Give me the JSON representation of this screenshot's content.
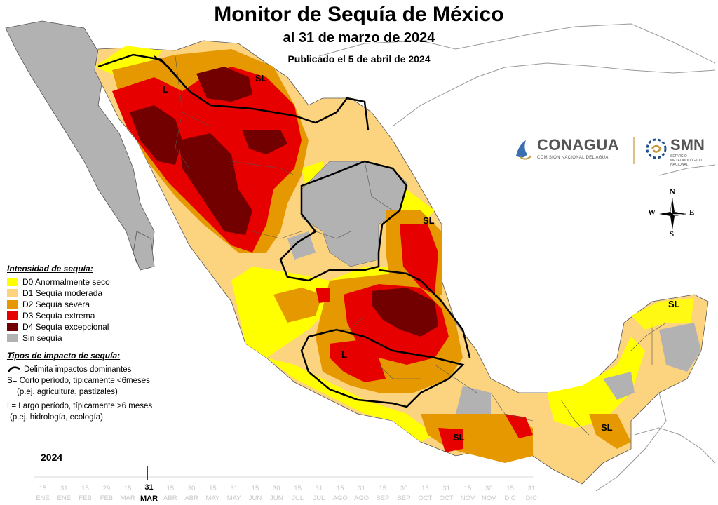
{
  "header": {
    "title": "Monitor de Sequía de México",
    "subtitle": "al 31 de marzo de 2024",
    "published": "Publicado el 5 de abril de 2024"
  },
  "logos": {
    "conagua_name": "CONAGUA",
    "conagua_sub": "COMISIÓN NACIONAL DEL AGUA",
    "smn_name": "SMN",
    "smn_sub1": "SERVICIO",
    "smn_sub2": "METEOROLÓGICO",
    "smn_sub3": "NACIONAL"
  },
  "compass": {
    "n": "N",
    "s": "S",
    "e": "E",
    "w": "W"
  },
  "legend": {
    "intensity_title": "Intensidad de sequía:",
    "categories": [
      {
        "label": "D0 Anormalmente seco",
        "color": "#ffff00"
      },
      {
        "label": "D1 Sequía moderada",
        "color": "#fcd37f"
      },
      {
        "label": "D2 Sequía severa",
        "color": "#e69800"
      },
      {
        "label": "D3 Sequía extrema",
        "color": "#e60000"
      },
      {
        "label": "D4 Sequía excepcional",
        "color": "#730000"
      },
      {
        "label": "Sin sequía",
        "color": "#b2b2b2"
      }
    ],
    "impact_title": "Tipos de impacto de sequía:",
    "impact_line": "Delimita impactos dominantes",
    "short_term": "S= Corto período, típicamente <6meses",
    "short_term_ex": "(p.ej. agricultura, pastizales)",
    "long_term": "L= Largo período, típicamente >6 meses",
    "long_term_ex": "(p.ej. hidrología, ecología)"
  },
  "region_labels": [
    "L",
    "SL",
    "SL",
    "L",
    "SL",
    "SL",
    "SL"
  ],
  "timeline": {
    "year": "2024",
    "day_labels": [
      "15",
      "31",
      "15",
      "29",
      "15",
      "31",
      "15",
      "30",
      "15",
      "31",
      "15",
      "30",
      "15",
      "31",
      "15",
      "31",
      "15",
      "30",
      "15",
      "31",
      "15",
      "30",
      "15",
      "31"
    ],
    "month_labels": [
      "ENE",
      "ENE",
      "FEB",
      "FEB",
      "MAR",
      "MAR",
      "ABR",
      "ABR",
      "MAY",
      "MAY",
      "JUN",
      "JUN",
      "JUL",
      "JUL",
      "AGO",
      "AGO",
      "SEP",
      "SEP",
      "OCT",
      "OCT",
      "NOV",
      "NOV",
      "DIC",
      "DIC"
    ],
    "active_index": 5
  }
}
